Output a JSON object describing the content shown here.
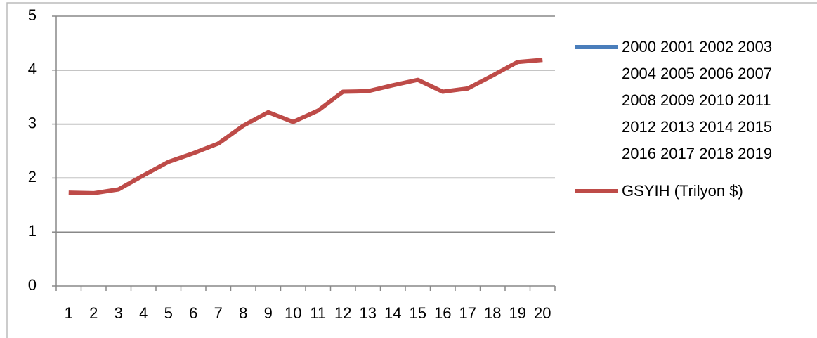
{
  "chart_data": {
    "type": "line",
    "categories": [
      "1",
      "2",
      "3",
      "4",
      "5",
      "6",
      "7",
      "8",
      "9",
      "10",
      "11",
      "12",
      "13",
      "14",
      "15",
      "16",
      "17",
      "18",
      "19",
      "20"
    ],
    "series": [
      {
        "name": "2000 2001 2002 2003 2004 2005 2006 2007 2008 2009 2010 2011 2012 2013 2014 2015 2016 2017 2018 2019",
        "color": "#4a7ebb",
        "values": [
          null,
          null,
          null,
          null,
          null,
          null,
          null,
          null,
          null,
          null,
          null,
          null,
          null,
          null,
          null,
          null,
          null,
          null,
          null,
          null
        ]
      },
      {
        "name": "GSYIH (Trilyon $)",
        "color": "#be4b48",
        "values": [
          1.73,
          1.72,
          1.79,
          2.05,
          2.3,
          2.46,
          2.64,
          2.97,
          3.22,
          3.04,
          3.25,
          3.6,
          3.61,
          3.72,
          3.82,
          3.6,
          3.66,
          3.9,
          4.15,
          4.19
        ]
      }
    ],
    "ylim": [
      0,
      5
    ],
    "yticks": [
      0,
      1,
      2,
      3,
      4,
      5
    ],
    "grid": true
  }
}
